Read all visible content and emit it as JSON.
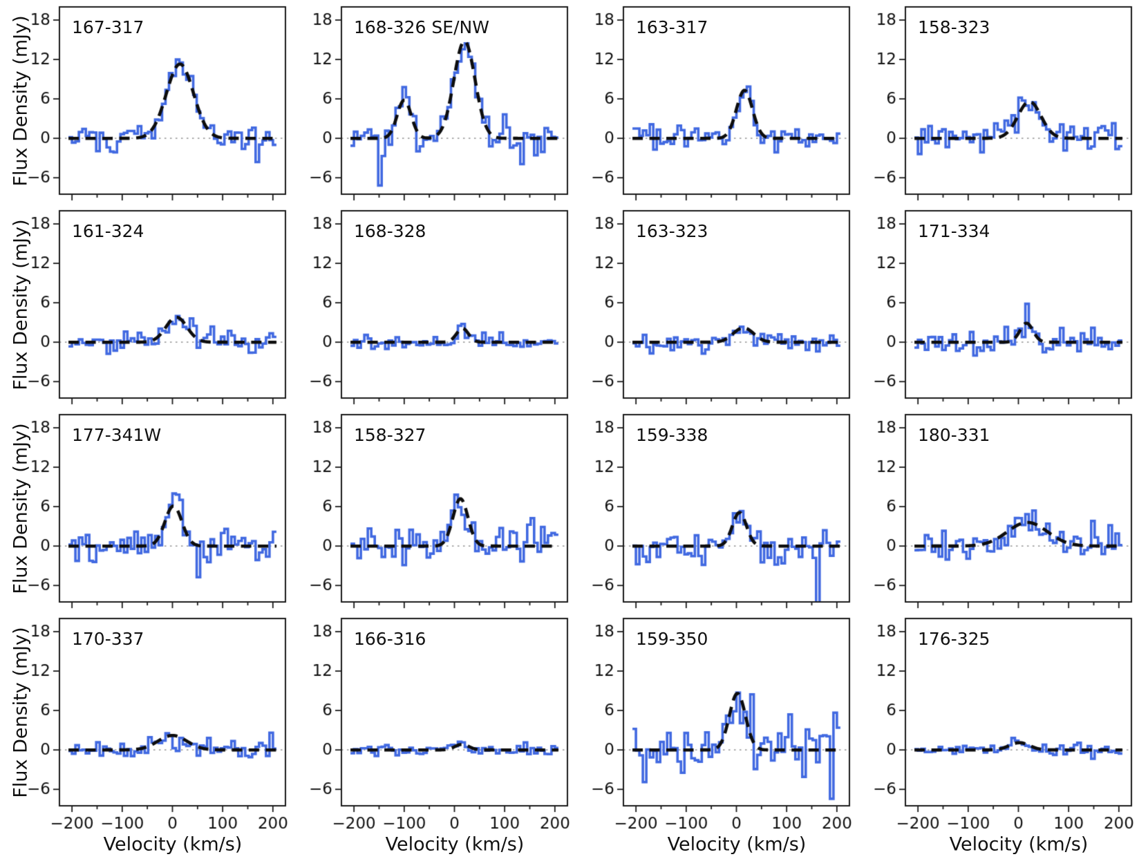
{
  "figure": {
    "ylabel": "Flux Density (mJy)",
    "xlabel": "Velocity (km/s)",
    "colors": {
      "spectrum_blue": "#4169e1",
      "fit_black": "#0d0d0d",
      "zero_line_gray": "#a0a0a0",
      "spine_black": "#1a1a1a",
      "text": "#111111",
      "background": "#ffffff"
    }
  },
  "chart_data": {
    "type": "line",
    "layout": "4x4 grid of spectra panels",
    "xlabel": "Velocity (km/s)",
    "ylabel": "Flux Density (mJy)",
    "xlim": [
      -225,
      225
    ],
    "ylim": [
      -8.5,
      20
    ],
    "xticks": [
      -200,
      -100,
      0,
      100,
      200
    ],
    "xticks_minor": [
      -150,
      -50,
      50,
      150
    ],
    "yticks": [
      -6,
      0,
      6,
      12,
      18
    ],
    "grid": false,
    "legend": false,
    "series_style": {
      "spectrum": "blue stepped histogram line",
      "fit": "black dashed gaussian fit",
      "baseline": "gray dotted zero line"
    },
    "panels": [
      {
        "title": "167-317",
        "gaussians": [
          {
            "amp": 11.3,
            "center": 15,
            "sigma": 27
          }
        ],
        "noise_rms": 0.95,
        "seed": 101,
        "spikes": [
          {
            "v": 170,
            "amp": -4.0
          }
        ]
      },
      {
        "title": "168-326 SE/NW",
        "gaussians": [
          {
            "amp": 5.8,
            "center": -100,
            "sigma": 14
          },
          {
            "amp": 14.8,
            "center": 20,
            "sigma": 21
          }
        ],
        "noise_rms": 1.35,
        "seed": 102,
        "spikes": [
          {
            "v": -151,
            "amp": -5.5
          },
          {
            "v": 136,
            "amp": -5.5
          }
        ]
      },
      {
        "title": "163-317",
        "gaussians": [
          {
            "amp": 7.3,
            "center": 16,
            "sigma": 16
          }
        ],
        "noise_rms": 1.0,
        "seed": 103,
        "spikes": []
      },
      {
        "title": "158-323",
        "gaussians": [
          {
            "amp": 5.6,
            "center": 22,
            "sigma": 23
          }
        ],
        "noise_rms": 1.1,
        "seed": 104,
        "spikes": [
          {
            "v": -198,
            "amp": -2.5
          }
        ]
      },
      {
        "title": "161-324",
        "gaussians": [
          {
            "amp": 3.8,
            "center": 8,
            "sigma": 21
          }
        ],
        "noise_rms": 0.85,
        "seed": 105,
        "spikes": [
          {
            "v": 40,
            "amp": 2.0
          }
        ]
      },
      {
        "title": "168-328",
        "gaussians": [
          {
            "amp": 2.1,
            "center": 16,
            "sigma": 12
          }
        ],
        "noise_rms": 0.55,
        "seed": 106,
        "spikes": []
      },
      {
        "title": "163-323",
        "gaussians": [
          {
            "amp": 2.2,
            "center": 14,
            "sigma": 20
          }
        ],
        "noise_rms": 0.75,
        "seed": 107,
        "spikes": []
      },
      {
        "title": "171-334",
        "gaussians": [
          {
            "amp": 2.9,
            "center": 16,
            "sigma": 13
          }
        ],
        "noise_rms": 0.95,
        "seed": 108,
        "spikes": [
          {
            "v": 18,
            "amp": 1.2
          }
        ]
      },
      {
        "title": "177-341W",
        "gaussians": [
          {
            "amp": 6.1,
            "center": 2,
            "sigma": 17
          }
        ],
        "noise_rms": 1.5,
        "seed": 109,
        "spikes": [
          {
            "v": 14,
            "amp": 2.5
          }
        ]
      },
      {
        "title": "158-327",
        "gaussians": [
          {
            "amp": 7.2,
            "center": 12,
            "sigma": 15
          }
        ],
        "noise_rms": 1.5,
        "seed": 110,
        "spikes": [
          {
            "v": 148,
            "amp": 3.5
          },
          {
            "v": 155,
            "amp": 2.5
          }
        ]
      },
      {
        "title": "159-338",
        "gaussians": [
          {
            "amp": 5.1,
            "center": 6,
            "sigma": 14
          }
        ],
        "noise_rms": 1.3,
        "seed": 111,
        "spikes": [
          {
            "v": 160,
            "amp": -8.0
          }
        ]
      },
      {
        "title": "180-331",
        "gaussians": [
          {
            "amp": 3.6,
            "center": 18,
            "sigma": 40
          }
        ],
        "noise_rms": 1.3,
        "seed": 112,
        "spikes": [
          {
            "v": 148,
            "amp": 4.0
          }
        ]
      },
      {
        "title": "170-337",
        "gaussians": [
          {
            "amp": 2.2,
            "center": 0,
            "sigma": 29
          }
        ],
        "noise_rms": 0.85,
        "seed": 113,
        "spikes": [
          {
            "v": 198,
            "amp": 2.5
          }
        ]
      },
      {
        "title": "166-316",
        "gaussians": [
          {
            "amp": 0.85,
            "center": 15,
            "sigma": 14
          }
        ],
        "noise_rms": 0.4,
        "seed": 114,
        "spikes": []
      },
      {
        "title": "159-350",
        "gaussians": [
          {
            "amp": 8.6,
            "center": 2,
            "sigma": 16
          }
        ],
        "noise_rms": 2.0,
        "seed": 115,
        "spikes": [
          {
            "v": -105,
            "amp": -5.0
          },
          {
            "v": 188,
            "amp": -4.0
          },
          {
            "v": 200,
            "amp": 6.0
          },
          {
            "v": 28,
            "amp": 3.0
          }
        ]
      },
      {
        "title": "176-325",
        "gaussians": [
          {
            "amp": 1.1,
            "center": 2,
            "sigma": 20
          }
        ],
        "noise_rms": 0.5,
        "seed": 116,
        "spikes": []
      }
    ]
  }
}
